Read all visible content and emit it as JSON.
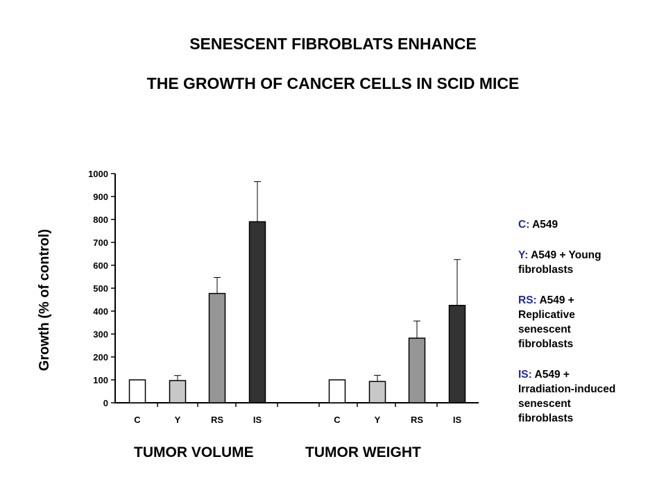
{
  "title_lines": [
    "SENESCENT FIBROBLATS ENHANCE",
    "THE GROWTH OF CANCER CELLS IN SCID MICE"
  ],
  "colors": {
    "C": "#ffffff",
    "Y": "#c8c8c8",
    "RS": "#969696",
    "IS": "#333333",
    "legend_key": "#1f2a9e"
  },
  "legend": [
    {
      "key": "C:",
      "text": "A549"
    },
    {
      "key": "Y:",
      "text": "A549 + Young\nfibroblasts"
    },
    {
      "key": "RS:",
      "text": "A549 +\nReplicative\nsenescent\nfibroblasts"
    },
    {
      "key": "IS:",
      "text": "A549 +\nIrradiation-induced\nsenescent\nfibroblasts"
    }
  ],
  "chart_data": {
    "type": "bar",
    "ylabel": "Growth (% of control)",
    "ylim": [
      0,
      1000
    ],
    "yticks": [
      0,
      100,
      200,
      300,
      400,
      500,
      600,
      700,
      800,
      900,
      1000
    ],
    "categories": [
      "C",
      "Y",
      "RS",
      "IS"
    ],
    "groups": [
      {
        "name": "TUMOR VOLUME",
        "values": [
          100,
          97,
          477,
          790
        ],
        "errors": [
          0,
          22,
          70,
          175
        ]
      },
      {
        "name": "TUMOR WEIGHT",
        "values": [
          100,
          93,
          282,
          425
        ],
        "errors": [
          0,
          27,
          75,
          200
        ]
      }
    ]
  }
}
